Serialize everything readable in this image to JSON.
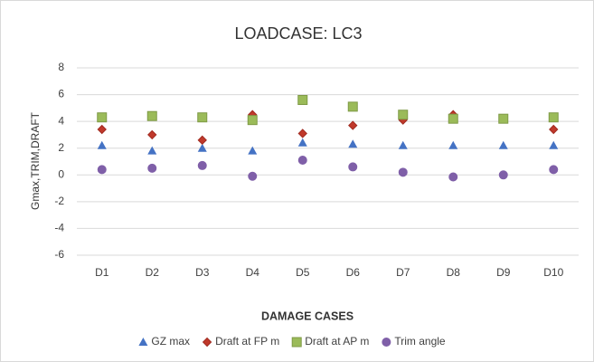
{
  "chart_data": {
    "type": "scatter",
    "title": "LOADCASE: LC3",
    "x_label": "DAMAGE CASES",
    "y_label": "Gmax,TRIM,DRAFT",
    "categories": [
      "D1",
      "D2",
      "D3",
      "D4",
      "D5",
      "D6",
      "D7",
      "D8",
      "D9",
      "D10"
    ],
    "series": [
      {
        "name": "GZ max",
        "color": "#4472c4",
        "marker": "triangle",
        "values": [
          2.2,
          1.8,
          2.0,
          1.8,
          2.4,
          2.3,
          2.2,
          2.2,
          2.2,
          2.2
        ]
      },
      {
        "name": "Draft at FP m",
        "color": "#c0392b",
        "marker": "diamond",
        "values": [
          3.4,
          3.0,
          2.6,
          4.5,
          3.1,
          3.7,
          4.1,
          4.5,
          4.2,
          3.4
        ]
      },
      {
        "name": "Draft at AP m",
        "color": "#9bbb59",
        "marker": "square",
        "values": [
          4.3,
          4.4,
          4.3,
          4.1,
          5.6,
          5.1,
          4.5,
          4.2,
          4.2,
          4.3
        ]
      },
      {
        "name": "Trim angle",
        "color": "#7f5fa8",
        "marker": "circle",
        "values": [
          0.4,
          0.5,
          0.7,
          -0.1,
          1.1,
          0.6,
          0.2,
          -0.15,
          0,
          0.4
        ]
      }
    ],
    "ylim": [
      -6,
      8
    ],
    "yticks": [
      -6,
      -4,
      -2,
      0,
      2,
      4,
      6,
      8
    ],
    "grid": true,
    "legend": "bottom"
  }
}
